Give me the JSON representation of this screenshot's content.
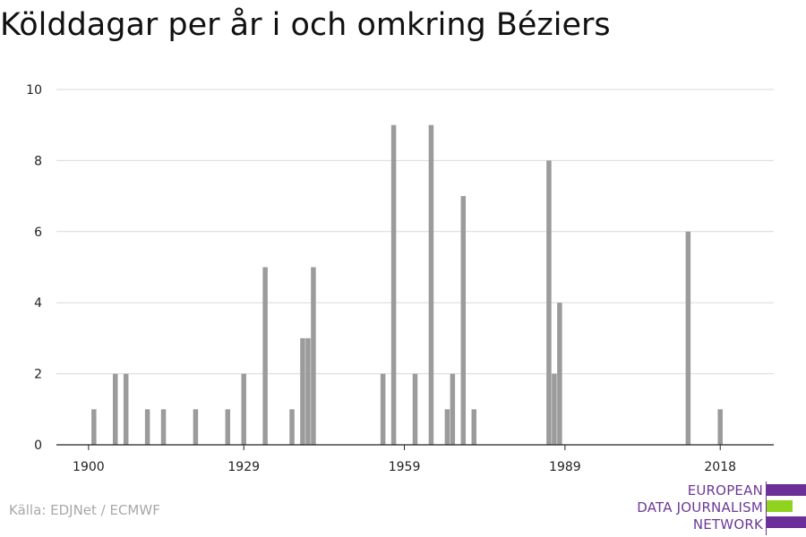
{
  "title": "Kölddagar per år i och omkring Béziers",
  "source": "Källa: EDJNet / ECMWF",
  "logo": {
    "lines": [
      "EUROPEAN",
      "DATA JOURNALISM",
      "NETWORK"
    ],
    "colors": {
      "purple": "#6c2f99",
      "green": "#8fd31f"
    }
  },
  "chart_data": {
    "type": "bar",
    "title": "Kölddagar per år i och omkring Béziers",
    "xlabel": "",
    "ylabel": "",
    "xlim": [
      1894,
      2028
    ],
    "ylim": [
      0,
      10
    ],
    "x_ticks": [
      1900,
      1929,
      1959,
      1989,
      2018
    ],
    "y_ticks": [
      0,
      2,
      4,
      6,
      8,
      10
    ],
    "grid": true,
    "bar_color": "#9b9b9b",
    "x": [
      1901,
      1905,
      1907,
      1911,
      1914,
      1920,
      1926,
      1929,
      1933,
      1938,
      1940,
      1941,
      1942,
      1955,
      1957,
      1961,
      1964,
      1967,
      1968,
      1970,
      1972,
      1986,
      1987,
      1988,
      2012,
      2018
    ],
    "values": [
      1,
      2,
      2,
      1,
      1,
      1,
      1,
      2,
      5,
      1,
      3,
      3,
      5,
      2,
      9,
      2,
      9,
      1,
      2,
      7,
      1,
      8,
      2,
      4,
      6,
      1
    ]
  }
}
